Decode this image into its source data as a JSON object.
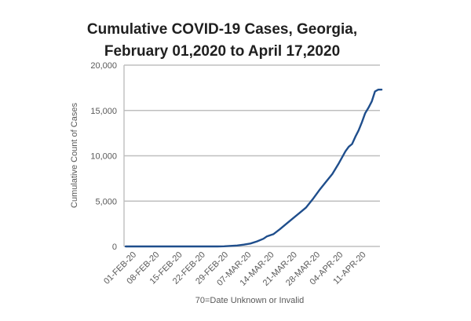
{
  "chart_data": {
    "type": "line",
    "title_lines": [
      "Cumulative COVID-19 Cases, Georgia,",
      "February 01,2020  to  April 17,2020"
    ],
    "xlabel": "",
    "ylabel": "Cumulative Count of Cases",
    "footnote": "70=Date Unknown or Invalid",
    "ylim": [
      0,
      20000
    ],
    "y_ticks": [
      0,
      5000,
      10000,
      15000,
      20000
    ],
    "y_tick_labels": [
      "0",
      "5,000",
      "10,000",
      "15,000",
      "20,000"
    ],
    "x_tick_labels": [
      "01-FEB-20",
      "08-FEB-20",
      "15-FEB-20",
      "22-FEB-20",
      "29-FEB-20",
      "07-MAR-20",
      "14-MAR-20",
      "21-MAR-20",
      "28-MAR-20",
      "04-APR-20",
      "11-APR-20"
    ],
    "x_range": [
      "2020-02-01",
      "2020-04-17"
    ],
    "grid": "horizontal",
    "line_color": "#1f4e8c",
    "series": [
      {
        "points": [
          [
            "2020-02-01",
            0
          ],
          [
            "2020-02-29",
            0
          ],
          [
            "2020-03-02",
            20
          ],
          [
            "2020-03-04",
            60
          ],
          [
            "2020-03-06",
            100
          ],
          [
            "2020-03-08",
            200
          ],
          [
            "2020-03-10",
            320
          ],
          [
            "2020-03-12",
            550
          ],
          [
            "2020-03-14",
            850
          ],
          [
            "2020-03-15",
            1100
          ],
          [
            "2020-03-17",
            1350
          ],
          [
            "2020-03-19",
            1900
          ],
          [
            "2020-03-21",
            2500
          ],
          [
            "2020-03-23",
            3100
          ],
          [
            "2020-03-25",
            3700
          ],
          [
            "2020-03-27",
            4300
          ],
          [
            "2020-03-29",
            5200
          ],
          [
            "2020-03-31",
            6200
          ],
          [
            "2020-04-02",
            7100
          ],
          [
            "2020-04-04",
            8000
          ],
          [
            "2020-04-06",
            9200
          ],
          [
            "2020-04-08",
            10500
          ],
          [
            "2020-04-09",
            11000
          ],
          [
            "2020-04-10",
            11300
          ],
          [
            "2020-04-11",
            12100
          ],
          [
            "2020-04-12",
            12800
          ],
          [
            "2020-04-13",
            13700
          ],
          [
            "2020-04-14",
            14700
          ],
          [
            "2020-04-15",
            15300
          ],
          [
            "2020-04-16",
            16000
          ],
          [
            "2020-04-17",
            17100
          ],
          [
            "2020-04-18",
            17300
          ],
          [
            "2020-04-19",
            17300
          ]
        ]
      }
    ]
  }
}
